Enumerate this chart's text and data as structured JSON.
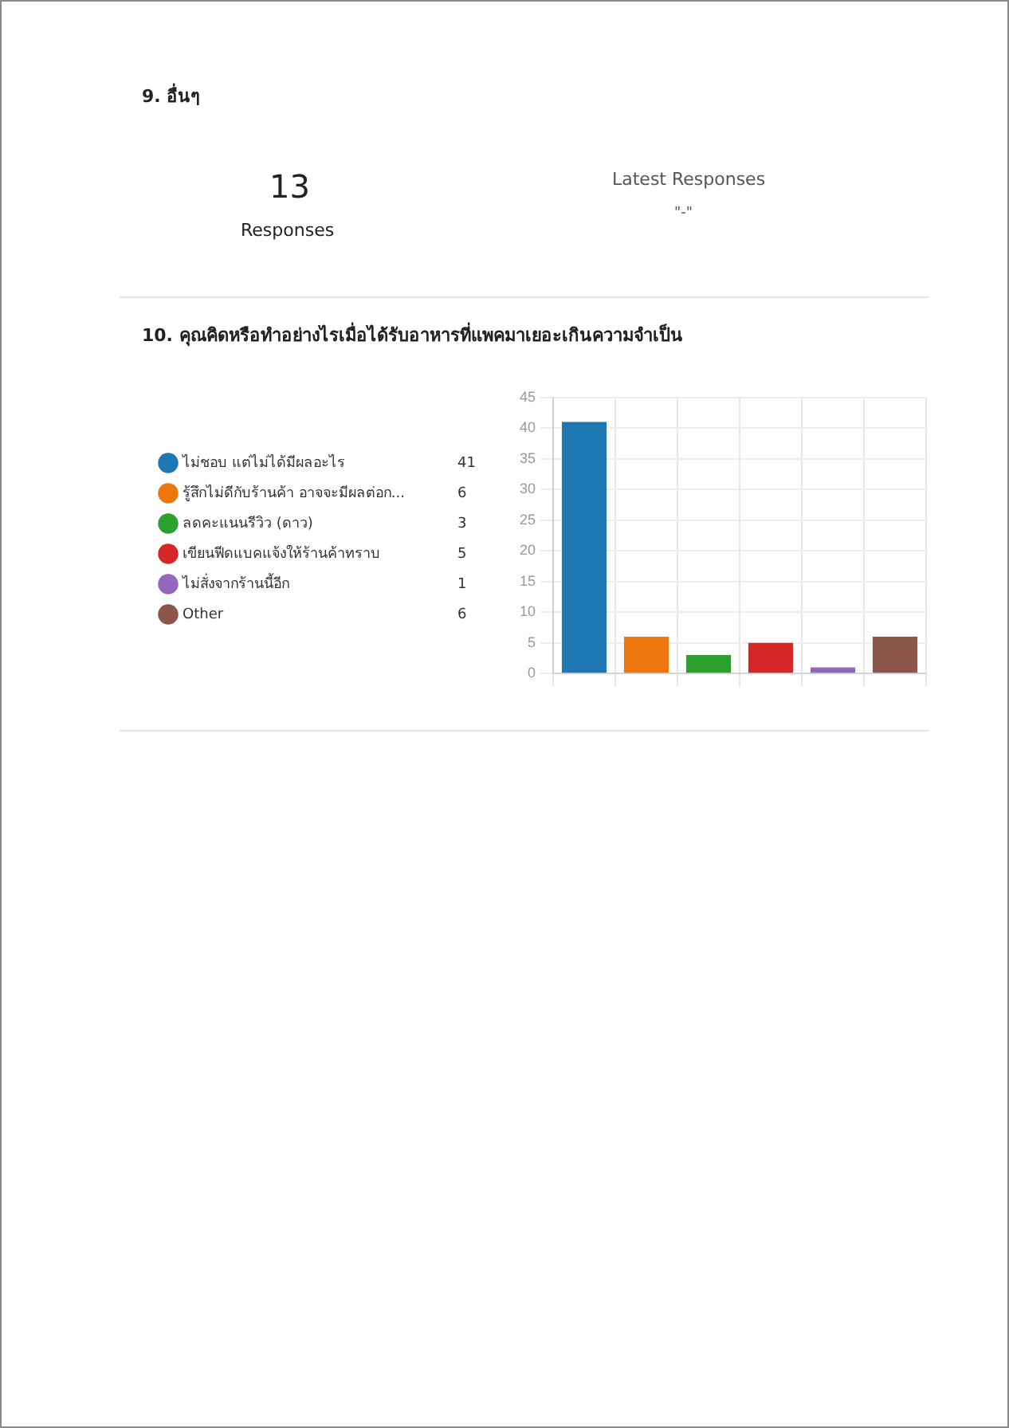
{
  "chart_data": {
    "type": "bar",
    "title": "10. คุณคิดหรือทำอย่างไรเมื่อได้รับอาหารที่แพคมาเยอะเกินความจำเป็น",
    "annotations": [
      "9. อื่นๆ",
      "13",
      "Responses",
      "Latest Responses",
      "\"-\"",
      "41",
      "6",
      "3",
      "5",
      "1",
      "6"
    ],
    "categories": [
      null,
      null,
      null,
      null,
      null,
      null
    ],
    "series": [
      {
        "name": "ไม่ชอบ แต่ไม่ได้มีผลอะไร",
        "color": "#1f77b4",
        "values": [
          41,
          null,
          null,
          null,
          null,
          null
        ]
      },
      {
        "name": "รู้สึกไม่ดีกับร้านค้า อาจจะมีผลต่อก...",
        "color": "#ed760e",
        "values": [
          null,
          6,
          null,
          null,
          null,
          null
        ]
      },
      {
        "name": "ลดคะแนนรีวิว (ดาว)",
        "color": "#2ca02c",
        "values": [
          null,
          null,
          3,
          null,
          null,
          null
        ]
      },
      {
        "name": "เขียนฟีดแบคแจ้งให้ร้านค้าทราบ",
        "color": "#d62728",
        "values": [
          null,
          null,
          null,
          5,
          null,
          null
        ]
      },
      {
        "name": "ไม่สั่งจากร้านนี้อีก",
        "color": "#9467bd",
        "values": [
          null,
          null,
          null,
          null,
          1,
          null
        ]
      },
      {
        "name": "Other",
        "color": "#8c564b",
        "values": [
          null,
          null,
          null,
          null,
          null,
          6
        ]
      }
    ],
    "ylim": [
      0,
      45
    ],
    "yticks": [
      0,
      5,
      10,
      15,
      20,
      25,
      30,
      35,
      40,
      45
    ],
    "grid": true,
    "legend": "left",
    "tick_labels": "y"
  }
}
